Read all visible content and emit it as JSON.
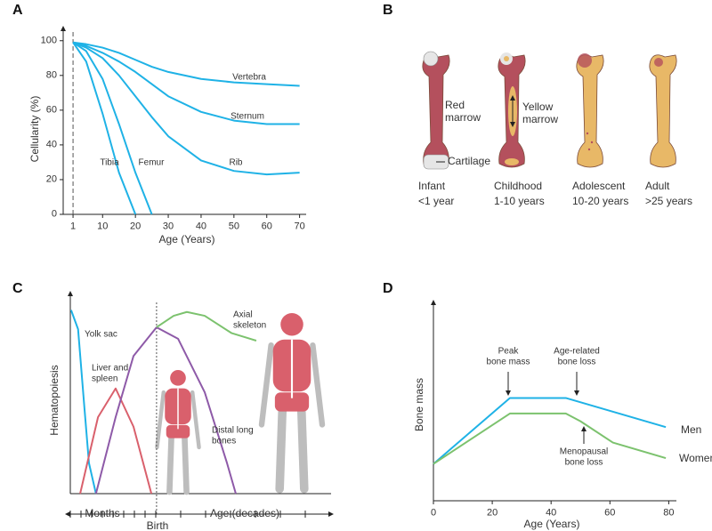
{
  "chart_data": [
    {
      "panel_label": "A",
      "type": "line",
      "x_label": "Age (Years)",
      "y_label": "Cellularity (%)",
      "x": [
        1,
        5,
        10,
        15,
        20,
        25,
        30,
        40,
        50,
        60,
        70
      ],
      "series": [
        {
          "name": "Vertebra",
          "color": "#1fb2e6",
          "values": [
            99,
            98,
            96,
            93,
            89,
            85,
            82,
            78,
            76,
            75,
            74
          ]
        },
        {
          "name": "Sternum",
          "color": "#1fb2e6",
          "values": [
            99,
            97,
            93,
            88,
            82,
            75,
            68,
            59,
            54,
            52,
            52
          ]
        },
        {
          "name": "Rib",
          "color": "#1fb2e6",
          "values": [
            99,
            96,
            90,
            80,
            68,
            56,
            45,
            31,
            25,
            23,
            24
          ]
        },
        {
          "name": "Femur",
          "color": "#1fb2e6",
          "values": [
            99,
            94,
            78,
            52,
            24,
            0,
            null,
            null,
            null,
            null,
            null
          ]
        },
        {
          "name": "Tibia",
          "color": "#1fb2e6",
          "values": [
            99,
            88,
            58,
            24,
            0,
            null,
            null,
            null,
            null,
            null,
            null
          ]
        }
      ],
      "xlim": [
        -2,
        72
      ],
      "ylim": [
        0,
        105
      ],
      "xticks": [
        1,
        10,
        20,
        30,
        40,
        50,
        60,
        70
      ],
      "yticks": [
        0,
        20,
        40,
        60,
        80,
        100
      ],
      "reference_line_x": 1
    },
    {
      "panel_label": "C",
      "type": "line",
      "x_labels": [
        "Months",
        "Age (decades)"
      ],
      "y_label": "Hematopoiesis",
      "annotations": [
        "Birth"
      ],
      "series": [
        {
          "name": "Yolk sac",
          "color": "#1fb2e6",
          "x": [
            0.3,
            3,
            5.5,
            7.2,
            9.9
          ],
          "values": [
            96,
            86,
            44,
            16,
            0
          ]
        },
        {
          "name": "Liver and\nspleen",
          "color": "#d9606c",
          "x": [
            3.8,
            10.7,
            17.5,
            24.4,
            31.3
          ],
          "values": [
            0,
            40,
            55,
            35,
            0
          ]
        },
        {
          "name": "Distal long\nbones",
          "color": "#8e5aa8",
          "x": [
            9.9,
            17.5,
            24.4,
            33.3,
            41.6,
            51.9,
            60.5,
            63.9
          ],
          "values": [
            0,
            40,
            72,
            87,
            81,
            53,
            16,
            0
          ]
        },
        {
          "name": "Axial\nskeleton",
          "color": "#7cc26e",
          "x": [
            33.3,
            39.9,
            45,
            51.9,
            62.2,
            71.8
          ],
          "values": [
            87,
            93,
            95,
            93,
            84,
            80
          ]
        }
      ],
      "xlim": [
        0,
        100
      ],
      "ylim": [
        0,
        100
      ],
      "reference_line_x": 33.3
    },
    {
      "panel_label": "D",
      "type": "line",
      "x_label": "Age (Years)",
      "y_label": "Bone mass",
      "annotations": [
        "Peak\nbone mass",
        "Age-related\nbone loss",
        "Menopausal\nbone loss"
      ],
      "series": [
        {
          "name": "Men",
          "color": "#1fb2e6",
          "x": [
            0,
            26,
            45,
            79
          ],
          "values": [
            19,
            53,
            53,
            38
          ]
        },
        {
          "name": "Women",
          "color": "#7cc26e",
          "x": [
            0,
            26,
            45,
            50,
            61,
            79
          ],
          "values": [
            19,
            45,
            45,
            41,
            30,
            22
          ]
        }
      ],
      "xlim": [
        0,
        82
      ],
      "ylim": [
        0,
        100
      ],
      "xticks": [
        0,
        20,
        40,
        60,
        80
      ]
    }
  ],
  "panel_b": {
    "panel_label": "B",
    "labels": [
      "Red\nmarrow",
      "Yellow\nmarrow",
      "Cartilage"
    ],
    "stages": [
      {
        "name": "Infant",
        "age": "<1 year"
      },
      {
        "name": "Childhood",
        "age": "1-10 years"
      },
      {
        "name": "Adolescent",
        "age": "10-20 years"
      },
      {
        "name": "Adult",
        "age": ">25 years"
      }
    ]
  }
}
